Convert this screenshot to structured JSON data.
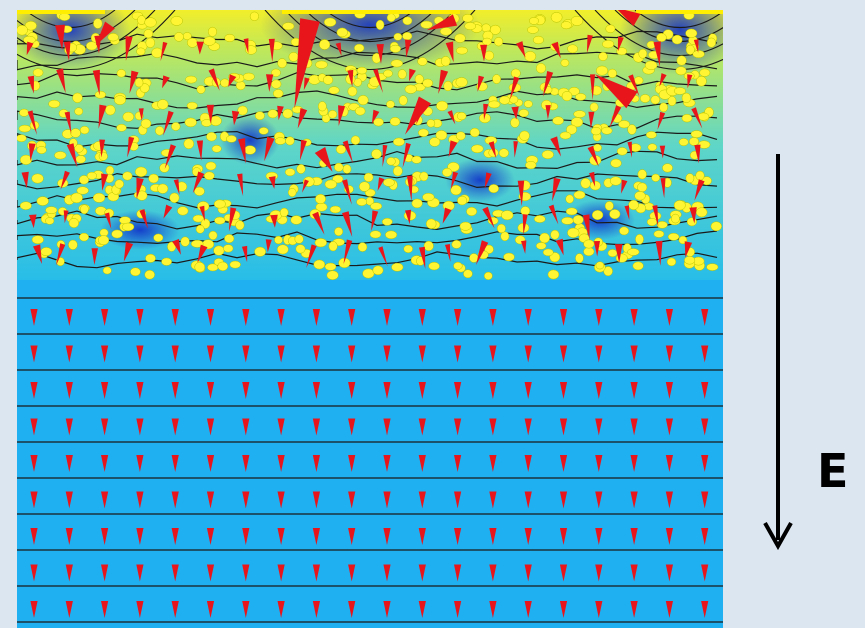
{
  "diagram": {
    "field_arrow_label": "E",
    "colors": {
      "background": "#dce6f1",
      "uniform_region": "#1fb0f2",
      "particle": "#fff533",
      "electrode": "#ffee00",
      "field_arrow": "#e8161b",
      "field_line": "#1a1a1a",
      "label": "#000000"
    }
  }
}
